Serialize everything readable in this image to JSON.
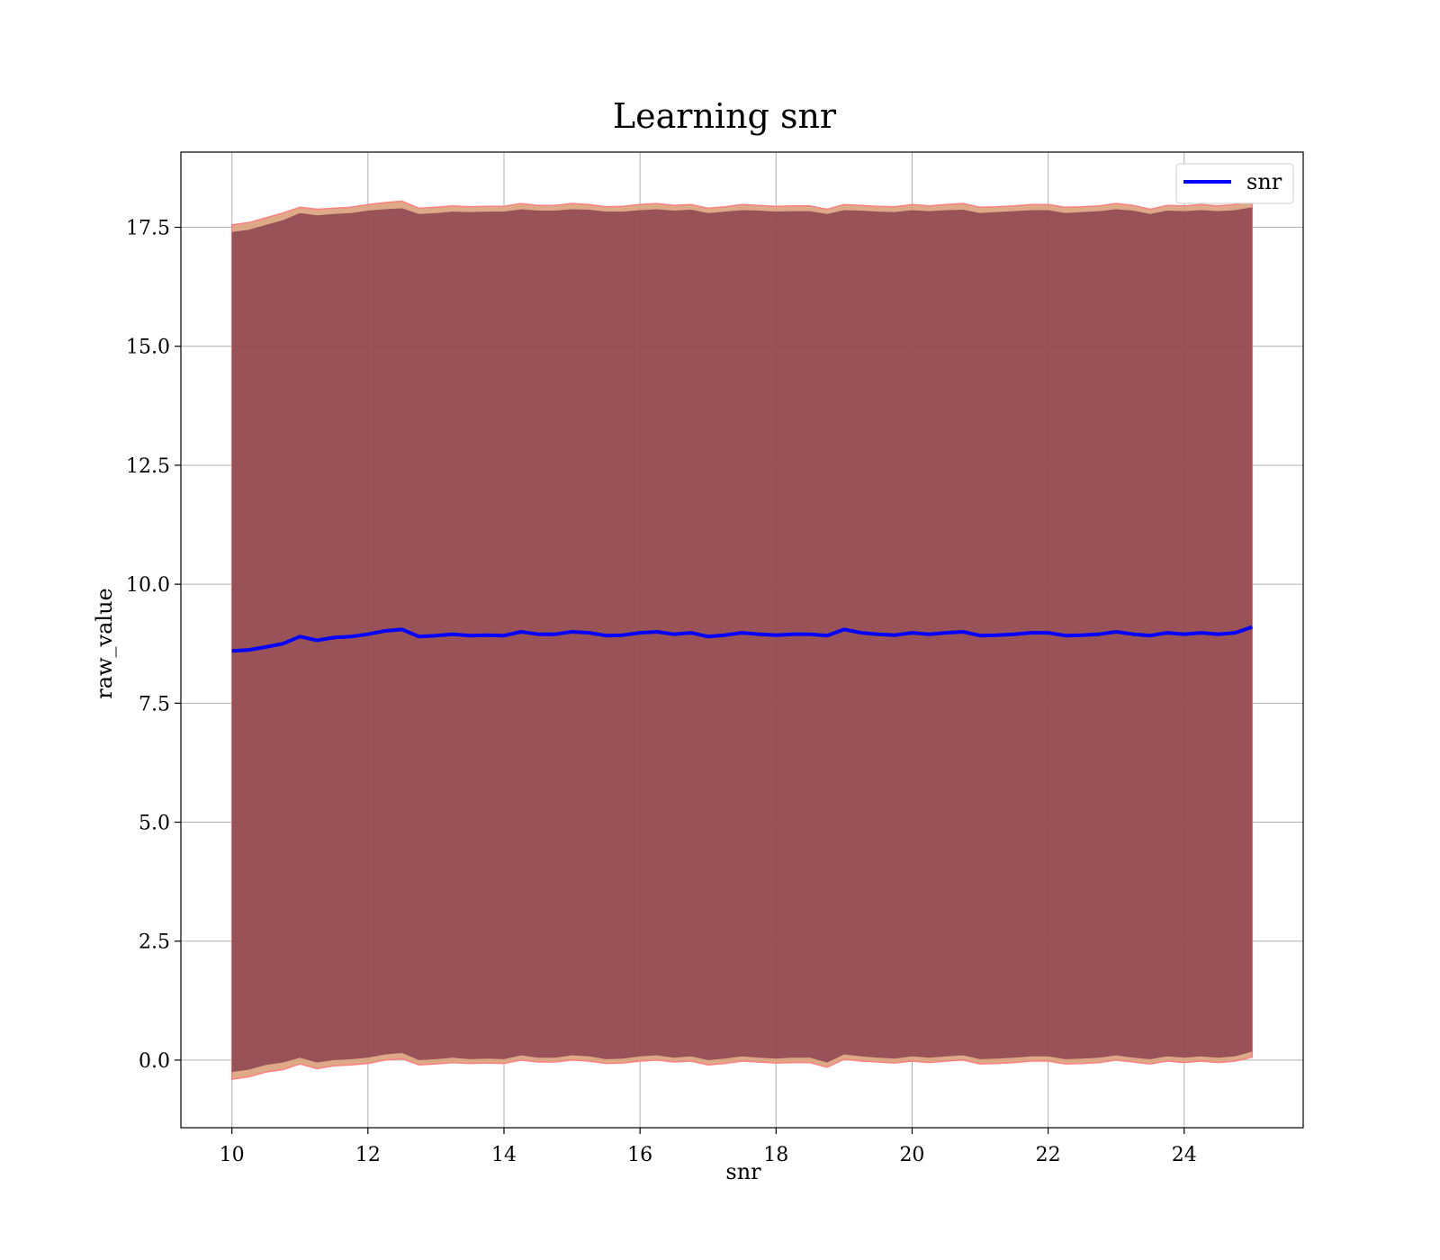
{
  "chart_data": {
    "type": "line",
    "title": "Learning snr",
    "xlabel": "snr",
    "ylabel": "raw_value",
    "xlim": [
      9.25,
      25.75
    ],
    "ylim": [
      -1.42,
      19.08
    ],
    "xticks": [
      10,
      12,
      14,
      16,
      18,
      20,
      22,
      24
    ],
    "yticks": [
      0.0,
      2.5,
      5.0,
      7.5,
      10.0,
      12.5,
      15.0,
      17.5
    ],
    "ytick_labels": [
      "0.0",
      "2.5",
      "5.0",
      "7.5",
      "10.0",
      "12.5",
      "15.0",
      "17.5"
    ],
    "grid": true,
    "legend": {
      "position": "top-right",
      "entries": [
        "snr"
      ]
    },
    "series": [
      {
        "name": "snr",
        "color": "#0000ff",
        "x": [
          10.0,
          10.25,
          10.5,
          10.75,
          11.0,
          11.25,
          11.5,
          11.75,
          12.0,
          12.25,
          12.5,
          12.75,
          13.0,
          13.25,
          13.5,
          13.75,
          14.0,
          14.25,
          14.5,
          14.75,
          15.0,
          15.25,
          15.5,
          15.75,
          16.0,
          16.25,
          16.5,
          16.75,
          17.0,
          17.25,
          17.5,
          17.75,
          18.0,
          18.25,
          18.5,
          18.75,
          19.0,
          19.25,
          19.5,
          19.75,
          20.0,
          20.25,
          20.5,
          20.75,
          21.0,
          21.25,
          21.5,
          21.75,
          22.0,
          22.25,
          22.5,
          22.75,
          23.0,
          23.25,
          23.5,
          23.75,
          24.0,
          24.25,
          24.5,
          24.75,
          25.0
        ],
        "y": [
          8.6,
          8.62,
          8.68,
          8.75,
          8.9,
          8.82,
          8.88,
          8.9,
          8.95,
          9.02,
          9.05,
          8.9,
          8.92,
          8.95,
          8.92,
          8.93,
          8.92,
          9.0,
          8.95,
          8.95,
          9.0,
          8.98,
          8.92,
          8.93,
          8.98,
          9.0,
          8.95,
          8.98,
          8.9,
          8.93,
          8.98,
          8.95,
          8.93,
          8.95,
          8.95,
          8.92,
          9.05,
          8.98,
          8.95,
          8.93,
          8.98,
          8.95,
          8.98,
          9.0,
          8.92,
          8.93,
          8.95,
          8.98,
          8.98,
          8.92,
          8.93,
          8.95,
          9.0,
          8.95,
          8.92,
          8.98,
          8.95,
          8.98,
          8.95,
          8.98,
          9.1
        ]
      }
    ],
    "bands": [
      {
        "fill": "#7a2e45",
        "opacity": 0.7,
        "upper": [
          17.4,
          17.45,
          17.55,
          17.65,
          17.8,
          17.75,
          17.78,
          17.8,
          17.85,
          17.88,
          17.9,
          17.78,
          17.8,
          17.83,
          17.82,
          17.83,
          17.83,
          17.88,
          17.85,
          17.85,
          17.88,
          17.87,
          17.83,
          17.83,
          17.86,
          17.88,
          17.85,
          17.87,
          17.8,
          17.83,
          17.86,
          17.85,
          17.83,
          17.84,
          17.84,
          17.78,
          17.86,
          17.85,
          17.83,
          17.82,
          17.86,
          17.84,
          17.86,
          17.87,
          17.8,
          17.82,
          17.84,
          17.86,
          17.86,
          17.8,
          17.82,
          17.84,
          17.88,
          17.85,
          17.78,
          17.85,
          17.84,
          17.86,
          17.84,
          17.86,
          17.92
        ],
        "lower": [
          -0.25,
          -0.2,
          -0.1,
          -0.05,
          0.05,
          -0.05,
          0.0,
          0.02,
          0.05,
          0.12,
          0.15,
          0.0,
          0.02,
          0.05,
          0.02,
          0.03,
          0.02,
          0.1,
          0.05,
          0.05,
          0.1,
          0.08,
          0.02,
          0.03,
          0.08,
          0.1,
          0.05,
          0.08,
          0.0,
          0.03,
          0.08,
          0.05,
          0.03,
          0.05,
          0.05,
          -0.05,
          0.12,
          0.08,
          0.05,
          0.03,
          0.08,
          0.05,
          0.08,
          0.1,
          0.02,
          0.03,
          0.05,
          0.08,
          0.08,
          0.02,
          0.03,
          0.05,
          0.1,
          0.05,
          0.02,
          0.08,
          0.05,
          0.08,
          0.05,
          0.08,
          0.18
        ]
      },
      {
        "fill": "#d9a07a",
        "opacity": 0.9,
        "upper": [
          17.55,
          17.6,
          17.7,
          17.8,
          17.92,
          17.88,
          17.9,
          17.92,
          17.98,
          18.02,
          18.05,
          17.9,
          17.92,
          17.95,
          17.93,
          17.94,
          17.94,
          18.0,
          17.96,
          17.96,
          18.0,
          17.98,
          17.93,
          17.94,
          17.98,
          18.0,
          17.96,
          17.98,
          17.9,
          17.93,
          17.98,
          17.96,
          17.94,
          17.95,
          17.95,
          17.88,
          17.98,
          17.96,
          17.94,
          17.93,
          17.98,
          17.95,
          17.98,
          18.0,
          17.92,
          17.93,
          17.95,
          17.98,
          17.98,
          17.92,
          17.93,
          17.95,
          18.0,
          17.96,
          17.88,
          17.96,
          17.95,
          17.98,
          17.95,
          17.98,
          18.05
        ],
        "lower": [
          -0.4,
          -0.35,
          -0.25,
          -0.2,
          -0.08,
          -0.18,
          -0.12,
          -0.1,
          -0.07,
          0.0,
          0.03,
          -0.1,
          -0.08,
          -0.05,
          -0.07,
          -0.06,
          -0.07,
          0.0,
          -0.04,
          -0.04,
          0.0,
          -0.02,
          -0.07,
          -0.06,
          -0.02,
          0.0,
          -0.04,
          -0.02,
          -0.1,
          -0.07,
          -0.02,
          -0.04,
          -0.06,
          -0.05,
          -0.05,
          -0.15,
          0.02,
          -0.02,
          -0.04,
          -0.06,
          -0.02,
          -0.05,
          -0.02,
          0.0,
          -0.08,
          -0.07,
          -0.05,
          -0.02,
          -0.02,
          -0.08,
          -0.07,
          -0.05,
          0.0,
          -0.04,
          -0.08,
          -0.02,
          -0.05,
          -0.02,
          -0.05,
          -0.02,
          0.06
        ]
      }
    ]
  }
}
